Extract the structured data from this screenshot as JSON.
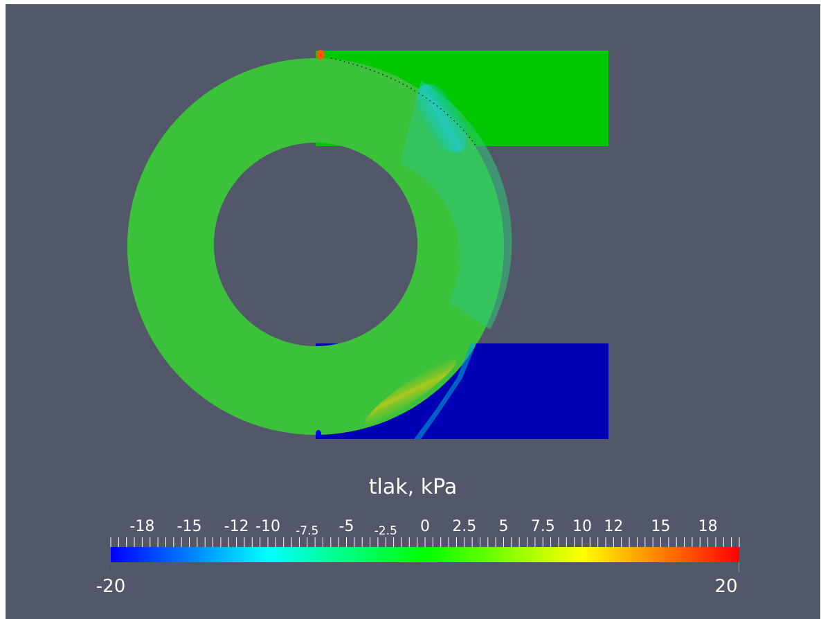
{
  "colorbar": {
    "title": "tlak, kPa",
    "min_label": "-20",
    "max_label": "20",
    "range": [
      -20,
      20
    ],
    "tick_labels": [
      {
        "text": "-18",
        "value": -18,
        "small": false
      },
      {
        "text": "-15",
        "value": -15,
        "small": false
      },
      {
        "text": "-12",
        "value": -12,
        "small": false
      },
      {
        "text": "-10",
        "value": -10,
        "small": false
      },
      {
        "text": "-7.5",
        "value": -7.5,
        "small": true
      },
      {
        "text": "-5",
        "value": -5,
        "small": false
      },
      {
        "text": "-2.5",
        "value": -2.5,
        "small": true
      },
      {
        "text": "0",
        "value": 0,
        "small": false
      },
      {
        "text": "2.5",
        "value": 2.5,
        "small": false
      },
      {
        "text": "5",
        "value": 5,
        "small": false
      },
      {
        "text": "7.5",
        "value": 7.5,
        "small": false
      },
      {
        "text": "10",
        "value": 10,
        "small": false
      },
      {
        "text": "12",
        "value": 12,
        "small": false
      },
      {
        "text": "15",
        "value": 15,
        "small": false
      },
      {
        "text": "18",
        "value": 18,
        "small": false
      }
    ],
    "colormap": [
      "#0000ff",
      "#00ffff",
      "#00ff00",
      "#ffff00",
      "#ff0000"
    ]
  },
  "colors": {
    "background": "#525769",
    "field_main": "#3cc23a",
    "outlet_top": "#00c800",
    "outlet_bottom": "#0000b4"
  }
}
